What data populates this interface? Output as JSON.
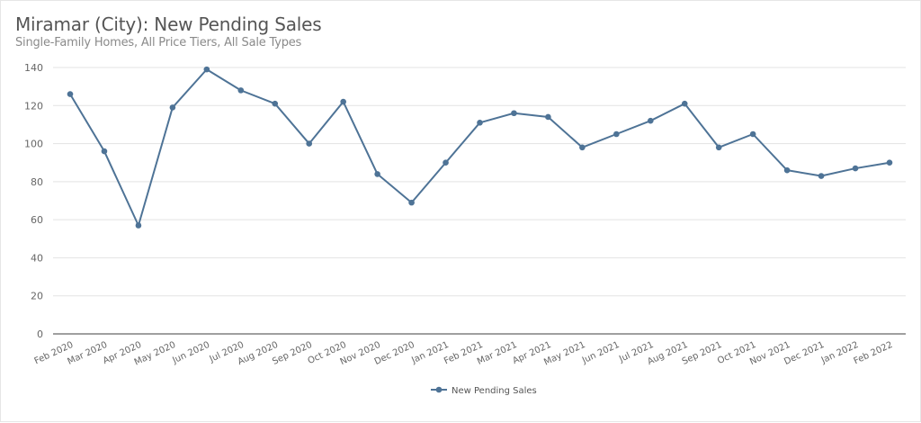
{
  "header": {
    "title": "Miramar (City): New Pending Sales",
    "subtitle": "Single-Family Homes, All Price Tiers, All Sale Types"
  },
  "colors": {
    "series": "#4e7396",
    "grid": "#e3e3e3",
    "axis": "#666666"
  },
  "legend": {
    "label": "New Pending Sales"
  },
  "chart_data": {
    "type": "line",
    "title": "Miramar (City): New Pending Sales",
    "subtitle": "Single-Family Homes, All Price Tiers, All Sale Types",
    "xlabel": "",
    "ylabel": "",
    "ylim": [
      0,
      140
    ],
    "yticks": [
      0,
      20,
      40,
      60,
      80,
      100,
      120,
      140
    ],
    "grid": true,
    "legend_position": "bottom",
    "categories": [
      "Feb 2020",
      "Mar 2020",
      "Apr 2020",
      "May 2020",
      "Jun 2020",
      "Jul 2020",
      "Aug 2020",
      "Sep 2020",
      "Oct 2020",
      "Nov 2020",
      "Dec 2020",
      "Jan 2021",
      "Feb 2021",
      "Mar 2021",
      "Apr 2021",
      "May 2021",
      "Jun 2021",
      "Jul 2021",
      "Aug 2021",
      "Sep 2021",
      "Oct 2021",
      "Nov 2021",
      "Dec 2021",
      "Jan 2022",
      "Feb 2022"
    ],
    "series": [
      {
        "name": "New Pending Sales",
        "values": [
          126,
          96,
          57,
          119,
          139,
          128,
          121,
          100,
          122,
          84,
          69,
          90,
          111,
          116,
          114,
          98,
          105,
          112,
          121,
          98,
          105,
          86,
          83,
          87,
          90
        ]
      }
    ]
  }
}
